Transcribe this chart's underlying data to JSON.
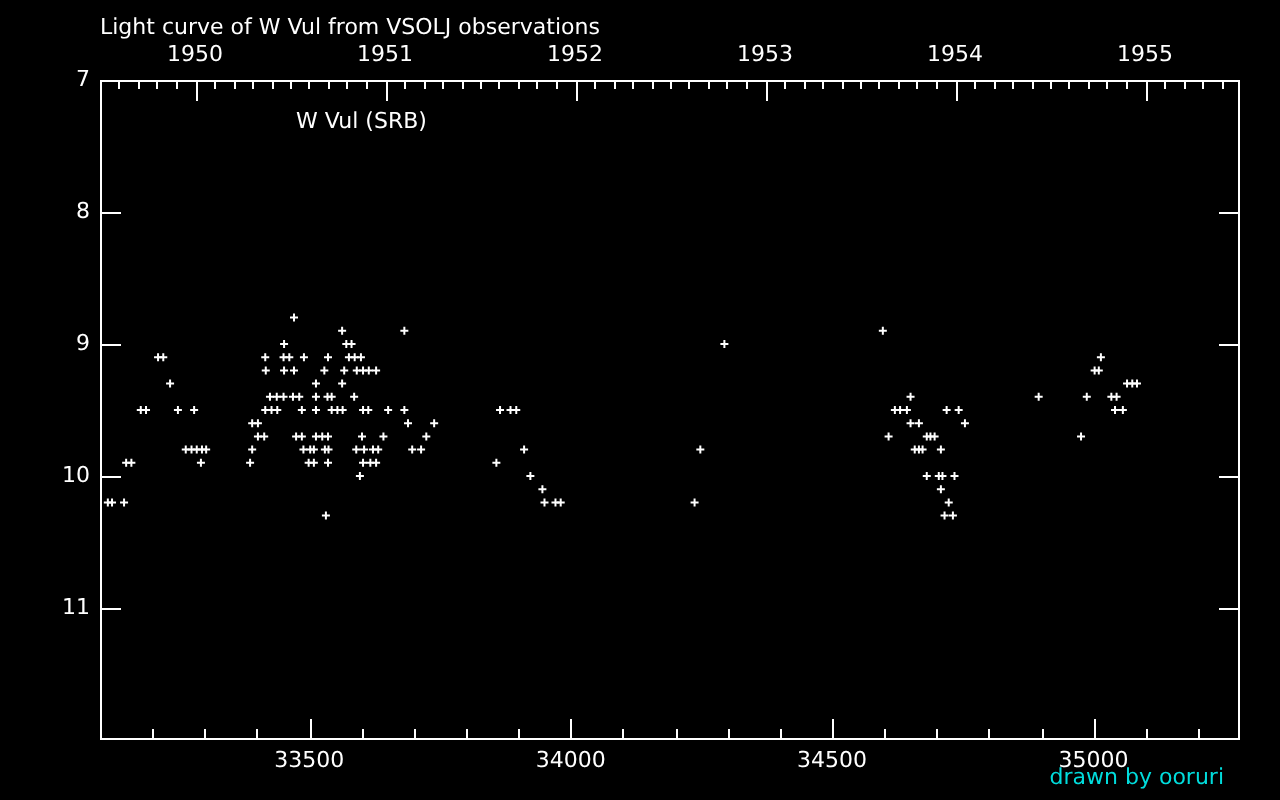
{
  "chart_data": {
    "type": "scatter",
    "title": "Light curve of W Vul from VSOLJ observations",
    "annotations": [
      "W Vul (SRB)",
      "drawn by ooruri"
    ],
    "x": [
      33115,
      33123,
      33146,
      33150,
      33160,
      33178,
      33188,
      33211,
      33221,
      33234,
      33249,
      33264,
      33275,
      33280,
      33285,
      33293,
      33295,
      33303,
      33387,
      33391,
      33391,
      33402,
      33402,
      33414,
      33416,
      33416,
      33417,
      33425,
      33428,
      33438,
      33439,
      33451,
      33451,
      33452,
      33452,
      33462,
      33469,
      33471,
      33471,
      33475,
      33481,
      33486,
      33486,
      33489,
      33490,
      33499,
      33502,
      33509,
      33509,
      33513,
      33513,
      33513,
      33513,
      33525,
      33529,
      33530,
      33532,
      33535,
      33536,
      33536,
      33536,
      33537,
      33543,
      33543,
      33554,
      33563,
      33563,
      33564,
      33567,
      33571,
      33576,
      33581,
      33586,
      33587,
      33590,
      33591,
      33597,
      33599,
      33601,
      33603,
      33603,
      33603,
      33605,
      33613,
      33614,
      33617,
      33622,
      33628,
      33628,
      33632,
      33642,
      33651,
      33682,
      33682,
      33689,
      33697,
      33714,
      33724,
      33739,
      33858,
      33865,
      33885,
      33896,
      33911,
      33923,
      33946,
      33950,
      33971,
      33981,
      34237,
      34248,
      34294,
      34597,
      34608,
      34620,
      34630,
      34643,
      34650,
      34650,
      34658,
      34666,
      34666,
      34673,
      34681,
      34681,
      34688,
      34696,
      34704,
      34708,
      34708,
      34711,
      34715,
      34719,
      34723,
      34731,
      34734,
      34742,
      34754,
      34895,
      34976,
      34987,
      35002,
      35010,
      35014,
      35034,
      35041,
      35044,
      35056,
      35064,
      35074,
      35083
    ],
    "values": [
      10.2,
      10.2,
      10.2,
      9.9,
      9.9,
      9.5,
      9.5,
      9.1,
      9.1,
      9.3,
      9.5,
      9.8,
      9.8,
      9.5,
      9.8,
      9.9,
      9.8,
      9.8,
      9.9,
      9.6,
      9.8,
      9.6,
      9.7,
      9.7,
      9.1,
      9.5,
      9.2,
      9.4,
      9.5,
      9.4,
      9.5,
      9.1,
      9.4,
      9.0,
      9.2,
      9.1,
      9.4,
      8.8,
      9.2,
      9.7,
      9.4,
      9.5,
      9.7,
      9.8,
      9.1,
      9.9,
      9.8,
      9.8,
      9.9,
      9.3,
      9.4,
      9.5,
      9.7,
      9.7,
      9.2,
      9.8,
      10.3,
      9.4,
      9.1,
      9.7,
      9.9,
      9.8,
      9.4,
      9.5,
      9.5,
      8.9,
      9.3,
      9.5,
      9.2,
      9.0,
      9.1,
      9.0,
      9.4,
      9.1,
      9.8,
      9.2,
      10.0,
      9.1,
      9.7,
      9.2,
      9.5,
      9.9,
      9.8,
      9.5,
      9.2,
      9.9,
      9.8,
      9.2,
      9.9,
      9.8,
      9.7,
      9.5,
      8.9,
      9.5,
      9.6,
      9.8,
      9.8,
      9.7,
      9.6,
      9.9,
      9.5,
      9.5,
      9.5,
      9.8,
      10.0,
      10.1,
      10.2,
      10.2,
      10.2,
      10.2,
      9.8,
      9.0,
      8.9,
      9.7,
      9.5,
      9.5,
      9.5,
      9.4,
      9.6,
      9.8,
      9.6,
      9.8,
      9.8,
      9.7,
      10.0,
      9.7,
      9.7,
      10.0,
      9.8,
      10.1,
      10.0,
      10.3,
      9.5,
      10.2,
      10.3,
      10.0,
      9.5,
      9.6,
      9.4,
      9.7,
      9.4,
      9.2,
      9.2,
      9.1,
      9.4,
      9.5,
      9.4,
      9.5,
      9.3,
      9.3,
      9.3
    ],
    "color": "#ffffff",
    "marker": "cross",
    "grid": false,
    "legend": false,
    "xlim": [
      33100,
      35280
    ],
    "xticks": [
      {
        "value": 33200,
        "label": null
      },
      {
        "value": 33300,
        "label": null
      },
      {
        "value": 33400,
        "label": null
      },
      33500,
      {
        "value": 33600,
        "label": null
      },
      {
        "value": 33700,
        "label": null
      },
      {
        "value": 33800,
        "label": null
      },
      {
        "value": 33900,
        "label": null
      },
      34000,
      {
        "value": 34100,
        "label": null
      },
      {
        "value": 34200,
        "label": null
      },
      {
        "value": 34300,
        "label": null
      },
      {
        "value": 34400,
        "label": null
      },
      34500,
      {
        "value": 34600,
        "label": null
      },
      {
        "value": 34700,
        "label": null
      },
      {
        "value": 34800,
        "label": null
      },
      {
        "value": 34900,
        "label": null
      },
      35000,
      {
        "value": 35100,
        "label": null
      },
      {
        "value": 35200,
        "label": null
      }
    ],
    "ylim": [
      12,
      7
    ],
    "yticks": [
      7,
      8,
      9,
      10,
      11
    ],
    "x2lim": [
      1949.5,
      1955.5
    ],
    "x2ticks": [
      {
        "value": 1949.6,
        "label": null
      },
      {
        "value": 1949.7,
        "label": null
      },
      {
        "value": 1949.8,
        "label": null
      },
      {
        "value": 1949.9,
        "label": null
      },
      1950,
      {
        "value": 1950.1,
        "label": null
      },
      {
        "value": 1950.2,
        "label": null
      },
      {
        "value": 1950.3,
        "label": null
      },
      {
        "value": 1950.4,
        "label": null
      },
      {
        "value": 1950.5,
        "label": null
      },
      {
        "value": 1950.6,
        "label": null
      },
      {
        "value": 1950.7,
        "label": null
      },
      {
        "value": 1950.8,
        "label": null
      },
      {
        "value": 1950.9,
        "label": null
      },
      1951,
      {
        "value": 1951.1,
        "label": null
      },
      {
        "value": 1951.2,
        "label": null
      },
      {
        "value": 1951.3,
        "label": null
      },
      {
        "value": 1951.4,
        "label": null
      },
      {
        "value": 1951.5,
        "label": null
      },
      {
        "value": 1951.6,
        "label": null
      },
      {
        "value": 1951.7,
        "label": null
      },
      {
        "value": 1951.8,
        "label": null
      },
      {
        "value": 1951.9,
        "label": null
      },
      1952,
      {
        "value": 1952.1,
        "label": null
      },
      {
        "value": 1952.2,
        "label": null
      },
      {
        "value": 1952.3,
        "label": null
      },
      {
        "value": 1952.4,
        "label": null
      },
      {
        "value": 1952.5,
        "label": null
      },
      {
        "value": 1952.6,
        "label": null
      },
      {
        "value": 1952.7,
        "label": null
      },
      {
        "value": 1952.8,
        "label": null
      },
      {
        "value": 1952.9,
        "label": null
      },
      1953,
      {
        "value": 1953.1,
        "label": null
      },
      {
        "value": 1953.2,
        "label": null
      },
      {
        "value": 1953.3,
        "label": null
      },
      {
        "value": 1953.4,
        "label": null
      },
      {
        "value": 1953.5,
        "label": null
      },
      {
        "value": 1953.6,
        "label": null
      },
      {
        "value": 1953.7,
        "label": null
      },
      {
        "value": 1953.8,
        "label": null
      },
      {
        "value": 1953.9,
        "label": null
      },
      1954,
      {
        "value": 1954.1,
        "label": null
      },
      {
        "value": 1954.2,
        "label": null
      },
      {
        "value": 1954.3,
        "label": null
      },
      {
        "value": 1954.4,
        "label": null
      },
      {
        "value": 1954.5,
        "label": null
      },
      {
        "value": 1954.6,
        "label": null
      },
      {
        "value": 1954.7,
        "label": null
      },
      {
        "value": 1954.8,
        "label": null
      },
      {
        "value": 1954.9,
        "label": null
      },
      1955,
      {
        "value": 1955.1,
        "label": null
      },
      {
        "value": 1955.2,
        "label": null
      },
      {
        "value": 1955.3,
        "label": null
      },
      {
        "value": 1955.4,
        "label": null
      }
    ]
  }
}
